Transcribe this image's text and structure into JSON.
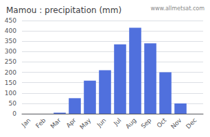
{
  "chart_data": {
    "type": "bar",
    "title": "Mamou : precipitation (mm)",
    "categories": [
      "Jan",
      "Feb",
      "Mar",
      "Apr",
      "May",
      "Jun",
      "Jul",
      "Aug",
      "Sep",
      "Oct",
      "Nov",
      "Dec"
    ],
    "values": [
      0,
      0,
      5,
      75,
      160,
      210,
      335,
      415,
      340,
      200,
      50,
      0
    ],
    "ylim": [
      0,
      450
    ],
    "yticks": [
      0,
      50,
      100,
      150,
      200,
      250,
      300,
      350,
      400,
      450
    ],
    "grid": true,
    "annotations": [
      "www.allmetsat.com"
    ]
  }
}
